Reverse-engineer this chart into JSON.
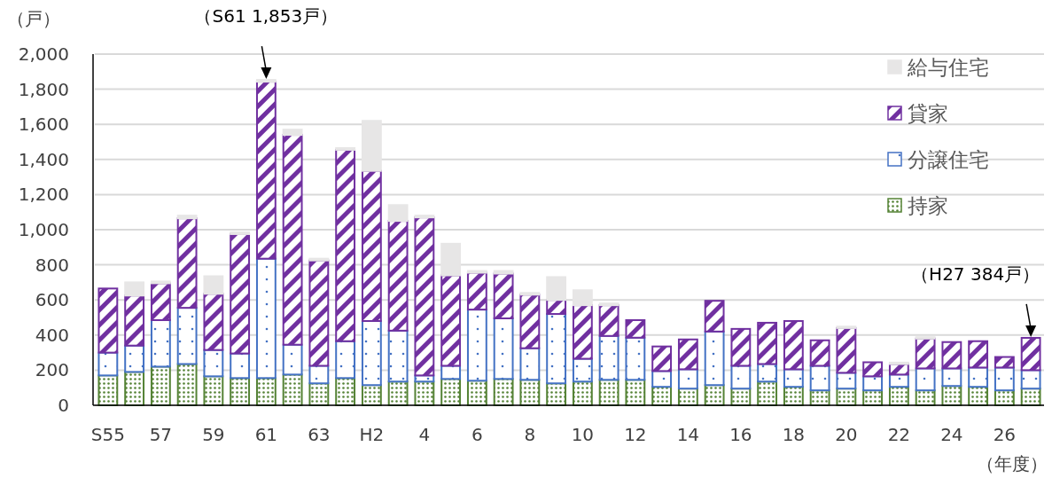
{
  "chart_data": {
    "type": "bar",
    "stacked": true,
    "ylabel": "（戸）",
    "xlabel": "（年度）",
    "categories": [
      "S55",
      null,
      "57",
      null,
      "59",
      null,
      "61",
      null,
      "63",
      null,
      "H2",
      null,
      "4",
      null,
      "6",
      null,
      "8",
      null,
      "10",
      null,
      "12",
      null,
      "14",
      null,
      "16",
      null,
      "18",
      null,
      "20",
      null,
      "22",
      null,
      "24",
      null,
      "26",
      null
    ],
    "series": [
      {
        "name": "持家",
        "color": "#548235",
        "values": [
          170,
          190,
          220,
          235,
          165,
          155,
          155,
          175,
          125,
          155,
          115,
          135,
          135,
          150,
          140,
          150,
          145,
          125,
          135,
          145,
          145,
          105,
          95,
          115,
          95,
          135,
          105,
          85,
          95,
          85,
          105,
          85,
          110,
          105,
          85,
          95
        ]
      },
      {
        "name": "分譲住宅",
        "color": "#4472c4",
        "values": [
          130,
          150,
          265,
          320,
          150,
          140,
          680,
          170,
          100,
          210,
          365,
          290,
          35,
          75,
          405,
          345,
          180,
          395,
          130,
          250,
          240,
          90,
          110,
          305,
          130,
          100,
          100,
          140,
          90,
          80,
          70,
          125,
          100,
          110,
          130,
          105
        ]
      },
      {
        "name": "貸家",
        "color": "#7030a0",
        "values": [
          365,
          285,
          210,
          510,
          320,
          680,
          1008,
          1195,
          600,
          1090,
          855,
          625,
          900,
          515,
          210,
          255,
          305,
          80,
          305,
          175,
          100,
          140,
          170,
          175,
          210,
          235,
          275,
          145,
          255,
          80,
          60,
          170,
          150,
          150,
          60,
          184
        ]
      },
      {
        "name": "給与住宅",
        "color": "#e7e6e6",
        "values": [
          0,
          75,
          10,
          15,
          100,
          10,
          10,
          30,
          10,
          10,
          285,
          90,
          10,
          180,
          10,
          15,
          10,
          130,
          85,
          10,
          0,
          0,
          0,
          0,
          0,
          0,
          0,
          0,
          8,
          0,
          8,
          8,
          0,
          0,
          0,
          0
        ]
      }
    ],
    "ylim": [
      0,
      2000
    ],
    "yticks": [
      0,
      200,
      400,
      600,
      800,
      {
        "value": 1000,
        "label": "1,000"
      },
      {
        "value": 1200,
        "label": "1,200"
      },
      {
        "value": 1400,
        "label": "1,400"
      },
      {
        "value": 1600,
        "label": "1,600"
      },
      {
        "value": 1800,
        "label": "1,800"
      },
      {
        "value": 2000,
        "label": "2,000"
      }
    ],
    "grid": "y",
    "legend": "top right",
    "annotations": [
      {
        "text": "（S61 1,853戸）",
        "x": "61",
        "y": 1853
      },
      {
        "text": "（H27 384戸）",
        "y": 384
      }
    ]
  }
}
